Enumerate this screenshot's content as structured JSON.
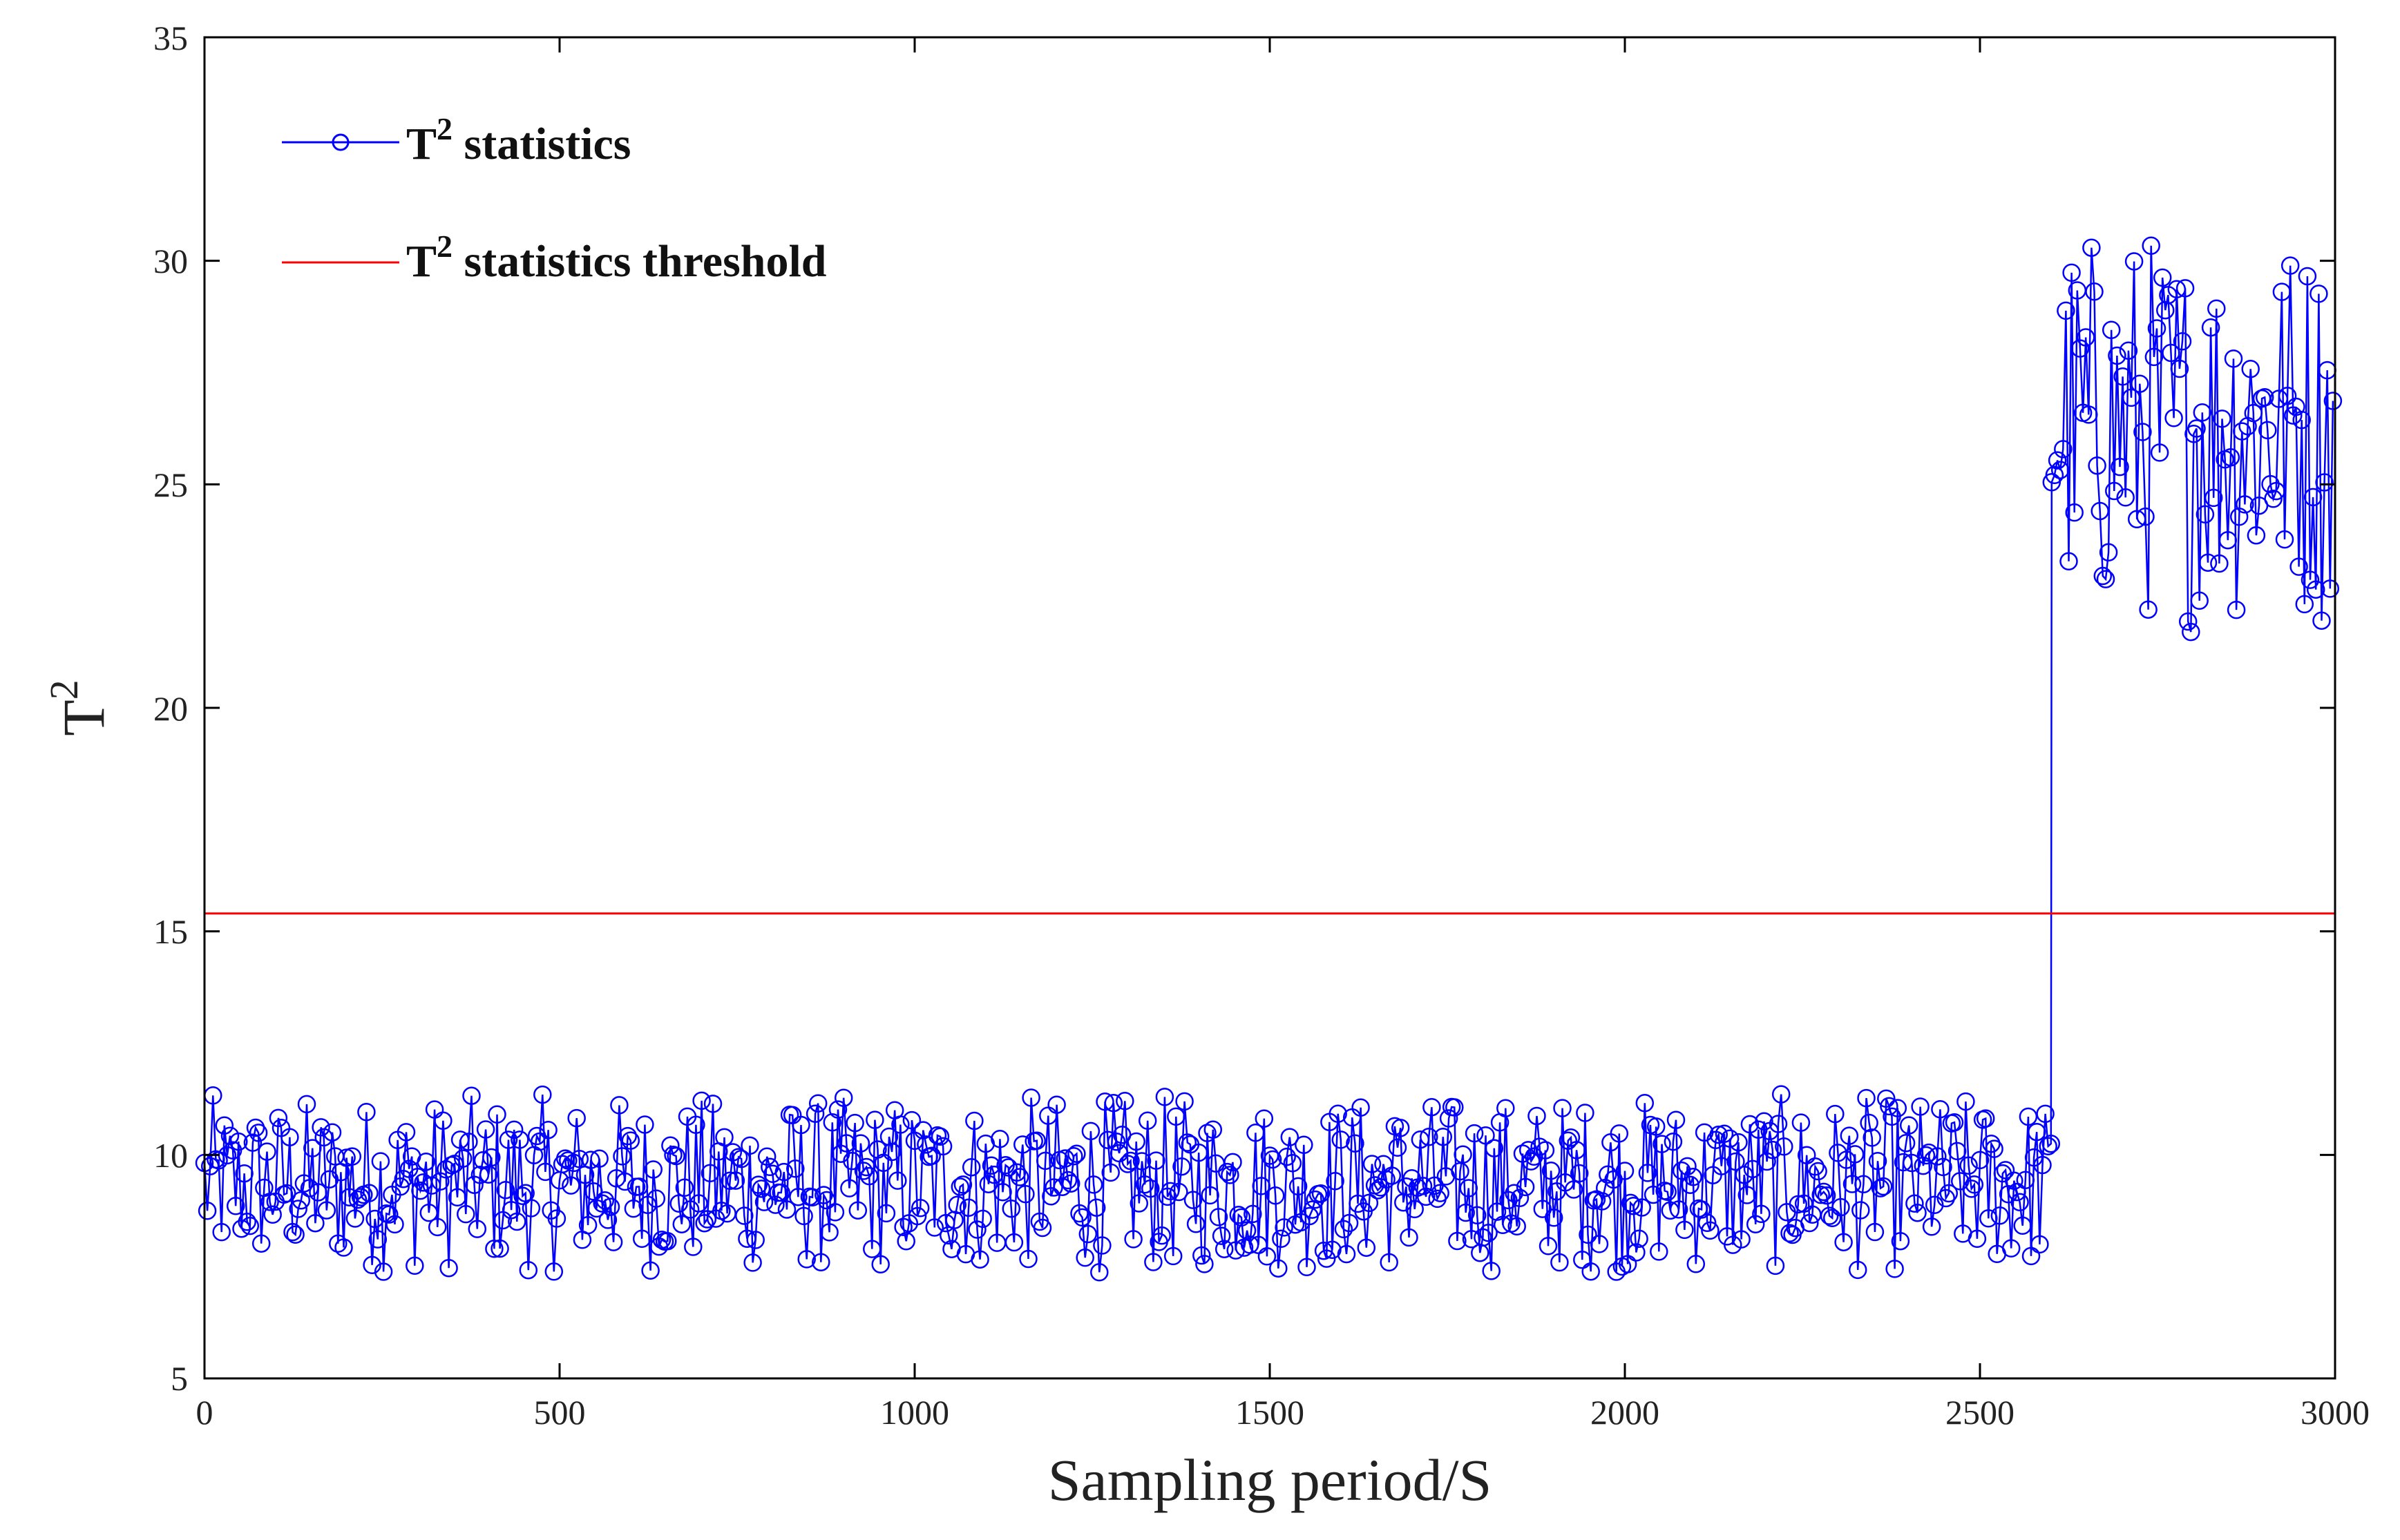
{
  "chart_data": {
    "type": "line",
    "xlabel": "Sampling period/S",
    "ylabel": "T",
    "ylabel_superscript": "2",
    "xlim": [
      0,
      3000
    ],
    "ylim": [
      5,
      35
    ],
    "x_ticks": [
      "0",
      "500",
      "1000",
      "1500",
      "2000",
      "2500",
      "3000"
    ],
    "y_ticks": [
      "5",
      "10",
      "15",
      "20",
      "25",
      "30",
      "35"
    ],
    "grid": false,
    "legend_position": "top-left",
    "series": [
      {
        "name": "T",
        "name_superscript": "2",
        "name_suffix": " statistics",
        "color": "#0000ff",
        "marker": "circle",
        "note": "",
        "segments": [
          {
            "x_start": 0,
            "x_end": 2600,
            "min": 7.3,
            "max": 11.4
          },
          {
            "x_start": 2601,
            "x_end": 3000,
            "min": 21.6,
            "max": 31.0
          }
        ]
      },
      {
        "name": "T",
        "name_superscript": "2",
        "name_suffix": " statistics threshold",
        "color": "#ff0000",
        "marker": "none",
        "value": 15.4
      }
    ]
  }
}
